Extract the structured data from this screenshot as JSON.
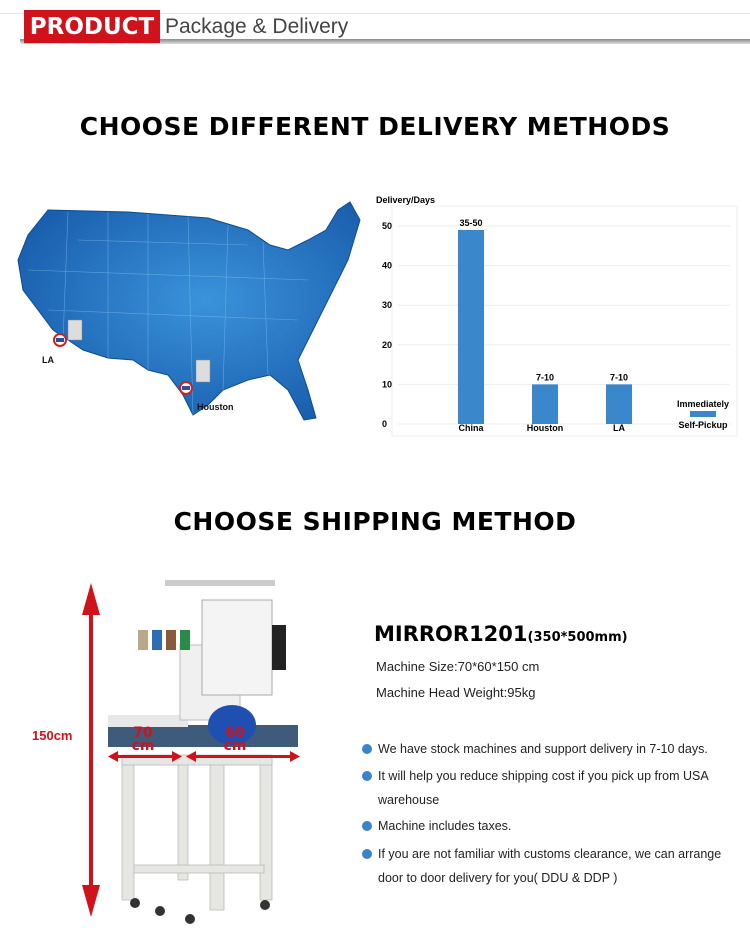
{
  "header": {
    "badge": "PRODUCT",
    "title": "Package & Delivery"
  },
  "section1": {
    "title": "CHOOSE DIFFERENT DELIVERY METHODS"
  },
  "map": {
    "labels": [
      "LA",
      "Houston"
    ],
    "land_color": "#1f6fbf",
    "flag_icon": "us-flag-pin-icon"
  },
  "chart_data": {
    "type": "bar",
    "ylabel": "Delivery/Days",
    "categories": [
      "China",
      "Houston",
      "LA",
      "Self-Pickup"
    ],
    "values": [
      49,
      10,
      10,
      2
    ],
    "data_labels": [
      "35-50",
      "7-10",
      "7-10",
      "Immediately"
    ],
    "yticks": [
      0,
      10,
      20,
      30,
      40,
      50
    ],
    "ylim": [
      0,
      52
    ],
    "grid": true,
    "bar_color": "#3a87cc"
  },
  "section2": {
    "title": "CHOOSE SHIPPING METHOD"
  },
  "product": {
    "model": "MIRROR1201",
    "model_size": "(350*500mm)",
    "specs": [
      "Machine Size:70*60*150 cm",
      "Machine Head Weight:95kg"
    ],
    "bullets": [
      "We have stock machines and support delivery in 7-10 days.",
      "It will help you reduce shipping cost if you pick up from USA warehouse",
      "Machine includes taxes.",
      "If you are not familiar with customs clearance, we can arrange door to door delivery for you( DDU & DDP )"
    ],
    "dims": {
      "height": "150cm",
      "width_num": "70",
      "depth_num": "60",
      "unit": "cm"
    },
    "accent": "#d0121b"
  }
}
